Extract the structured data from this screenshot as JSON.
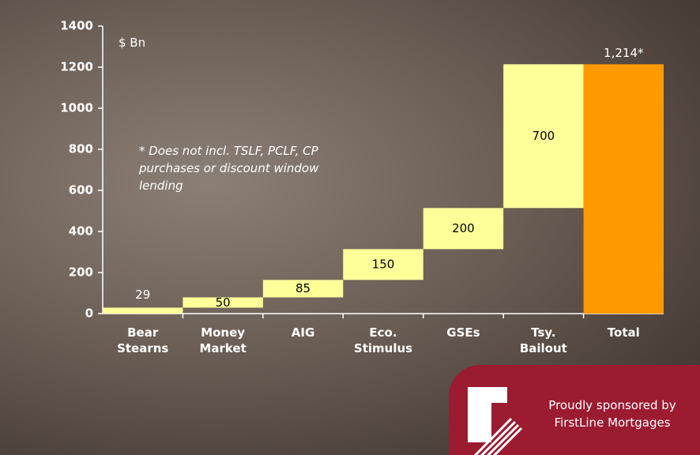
{
  "chart_data": {
    "type": "waterfall",
    "unit_label": "$ Bn",
    "note": "* Does not incl. TSLF, PCLF, CP purchases or discount window lending",
    "categories": [
      "Bear Stearns",
      "Money Market",
      "AIG",
      "Eco. Stimulus",
      "GSEs",
      "Tsy. Bailout",
      "Total"
    ],
    "values": [
      29,
      50,
      85,
      150,
      200,
      700,
      1214
    ],
    "value_labels": [
      "29",
      "50",
      "85",
      "150",
      "200",
      "700",
      "1,214*"
    ],
    "colors": [
      "#ffff99",
      "#ffff99",
      "#ffff99",
      "#ffff99",
      "#ffff99",
      "#ffff99",
      "#ff9900"
    ],
    "ylim": [
      0,
      1400
    ],
    "yticks": [
      0,
      200,
      400,
      600,
      800,
      1000,
      1200,
      1400
    ]
  },
  "sponsor": "Proudly sponsored by FirstLine Mortgages"
}
